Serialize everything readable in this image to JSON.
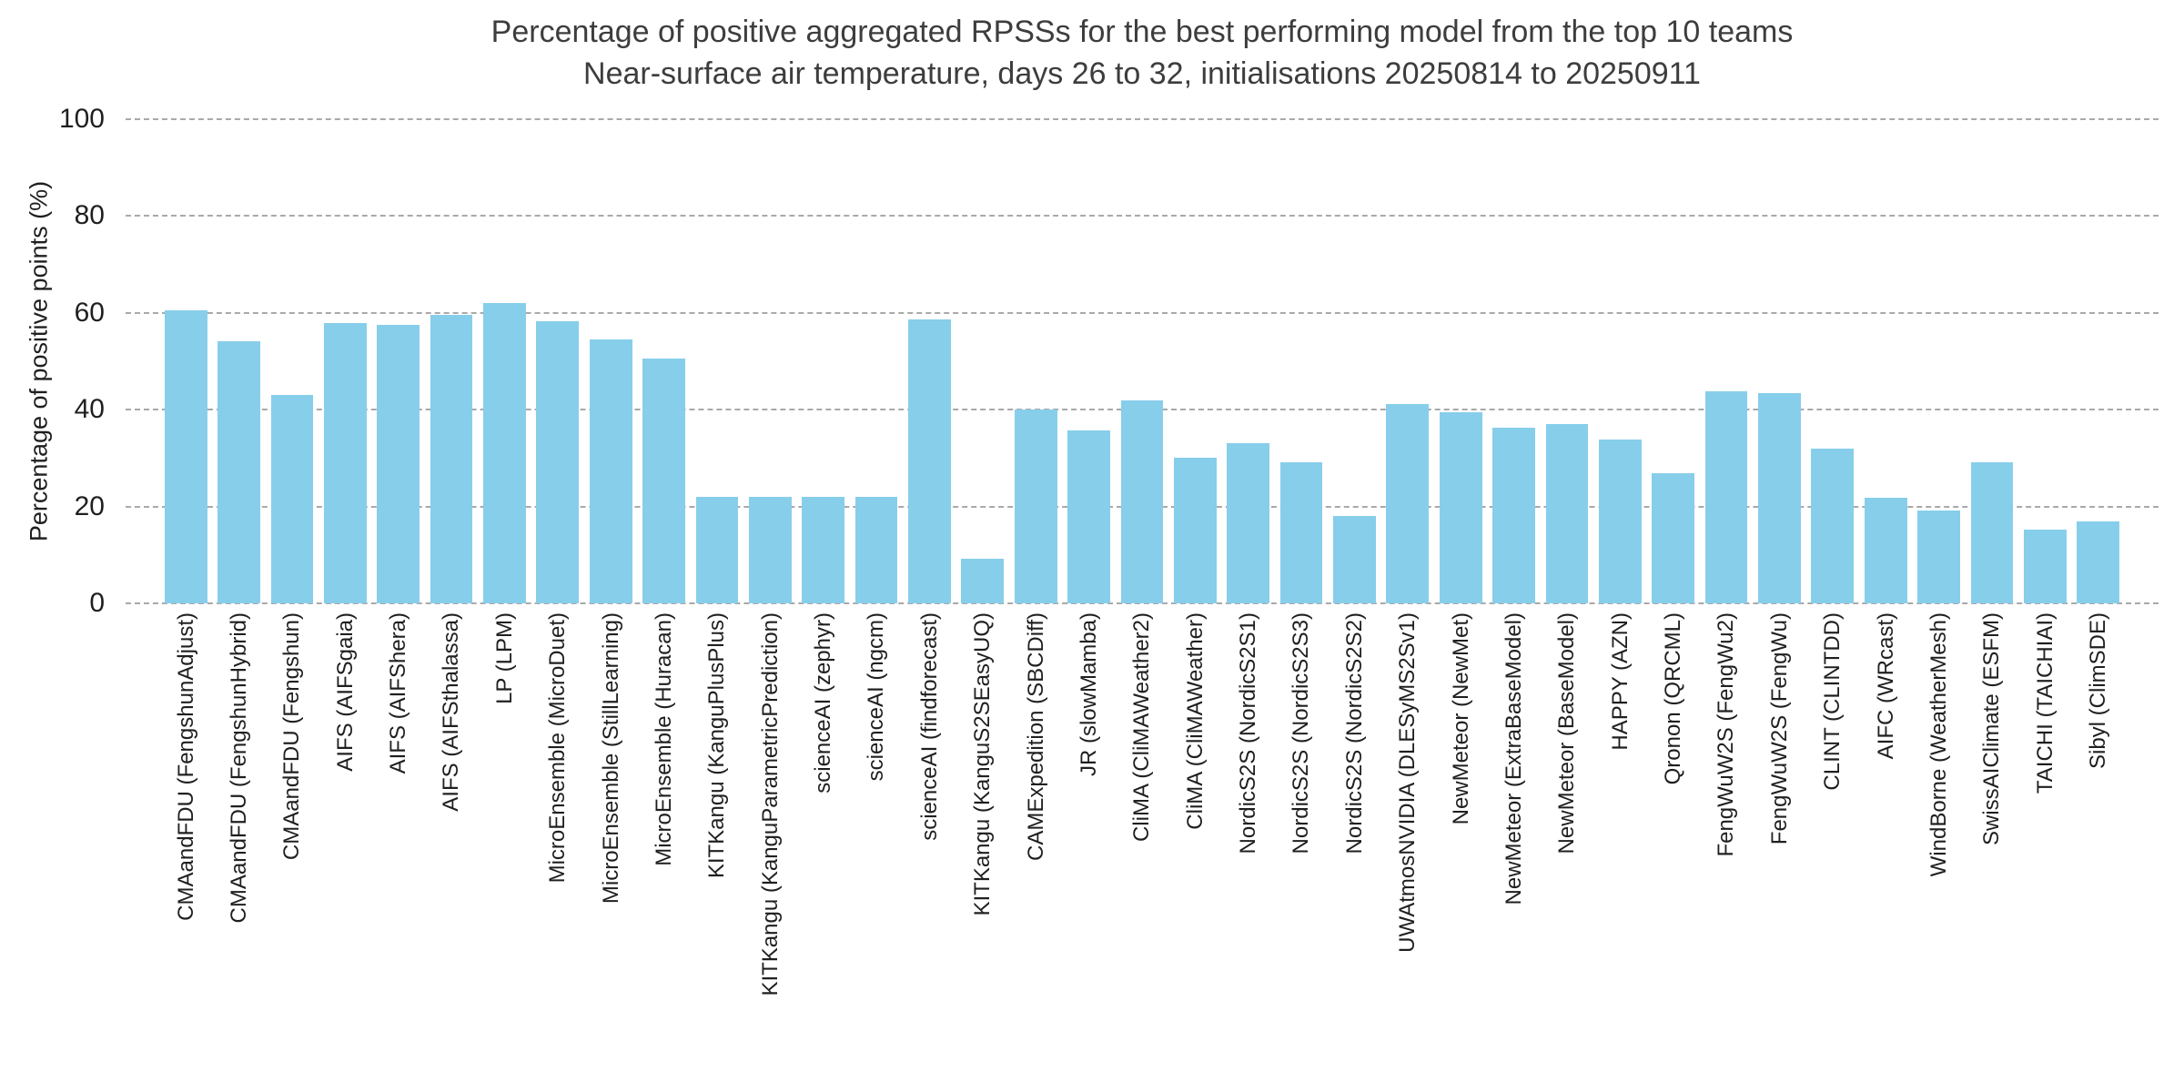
{
  "chart_data": {
    "type": "bar",
    "title": "Percentage of positive aggregated RPSSs for the best performing model from the top 10 teams",
    "subtitle": "Near-surface air temperature, days 26 to 32, initialisations 20250814 to 20250911",
    "ylabel": "Percentage of positive points (%)",
    "xlabel": "",
    "ylim": [
      0,
      100
    ],
    "yticks": [
      0,
      20,
      40,
      60,
      80,
      100
    ],
    "grid": "horizontal-dashed",
    "legend": "none",
    "colors": {
      "bar": "#87CEEB",
      "grid": "#a9a9a9",
      "text": "#1f1f1f",
      "title": "#3d3d3d",
      "background": "#ffffff"
    },
    "categories": [
      "CMAandFDU (FengshunAdjust)",
      "CMAandFDU (FengshunHybrid)",
      "CMAandFDU (Fengshun)",
      "AIFS (AIFSgaia)",
      "AIFS (AIFShera)",
      "AIFS (AIFSthalassa)",
      "LP (LPM)",
      "MicroEnsemble (MicroDuet)",
      "MicroEnsemble (StillLearning)",
      "MicroEnsemble (Huracan)",
      "KITKangu (KanguPlusPlus)",
      "KITKangu (KanguParametricPrediction)",
      "scienceAI (zephyr)",
      "scienceAI (ngcm)",
      "scienceAI (findforecast)",
      "KITKangu (KanguS2SEasyUQ)",
      "CAMExpedition (SBCDiff)",
      "JR (slowMamba)",
      "CliMA (CliMAWeather2)",
      "CliMA (CliMAWeather)",
      "NordicS2S (NordicS2S1)",
      "NordicS2S (NordicS2S3)",
      "NordicS2S (NordicS2S2)",
      "UWAtmosNVIDIA (DLESyMS2Sv1)",
      "NewMeteor (NewMet)",
      "NewMeteor (ExtraBaseModel)",
      "NewMeteor (BaseModel)",
      "HAPPY (AZN)",
      "Qronon (QRCML)",
      "FengWuW2S (FengWu2)",
      "FengWuW2S (FengWu)",
      "CLINT (CLINTDD)",
      "AIFC (WRcast)",
      "WindBorne (WeatherMesh)",
      "SwissAIClimate (ESFM)",
      "TAICHI (TAICHIAI)",
      "Sibyl (ClimSDE)"
    ],
    "values": [
      60.5,
      54.1,
      43.0,
      57.9,
      57.6,
      59.5,
      62.0,
      58.3,
      54.5,
      50.5,
      22.0,
      22.0,
      22.0,
      22.0,
      58.6,
      9.2,
      40.0,
      35.8,
      41.9,
      30.1,
      33.0,
      29.1,
      18.0,
      41.1,
      39.4,
      36.3,
      37.0,
      33.8,
      26.8,
      43.8,
      43.5,
      32.0,
      21.8,
      19.2,
      29.1,
      15.3,
      17.0
    ]
  }
}
